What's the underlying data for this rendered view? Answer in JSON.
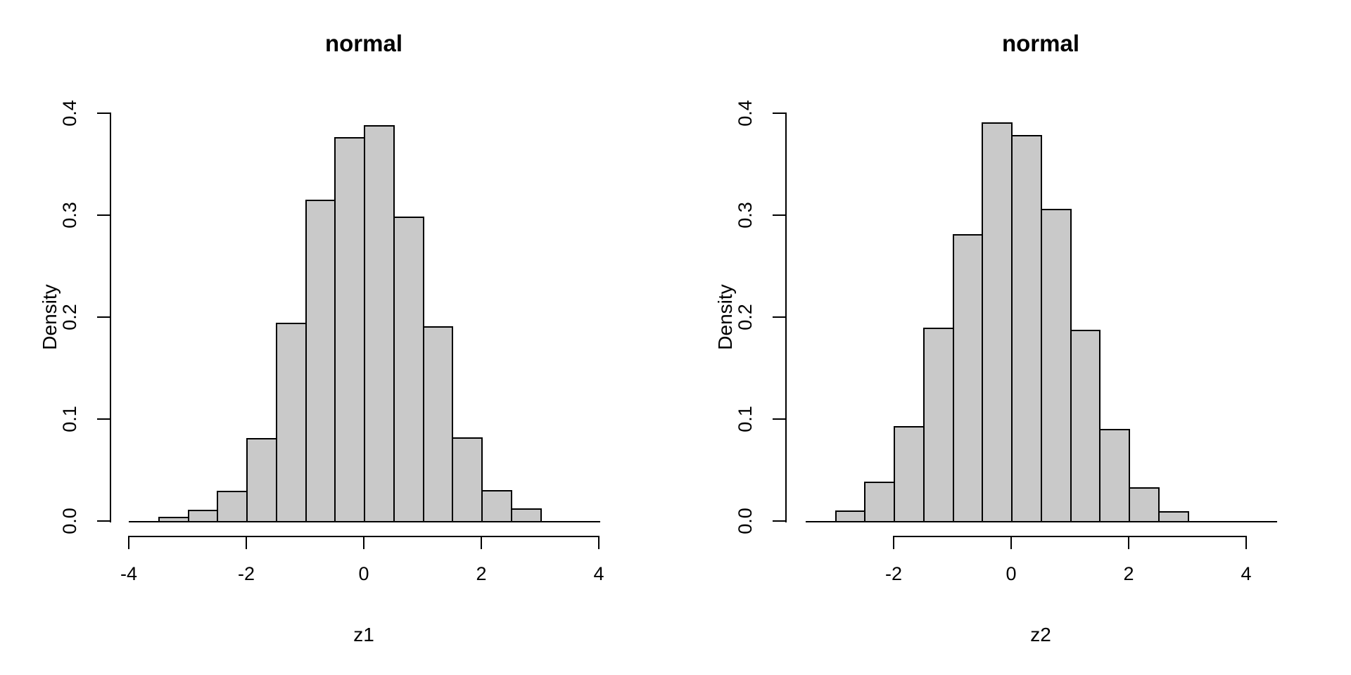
{
  "figure": {
    "background": "#ffffff",
    "bar_fill": "#c9c9c9",
    "bar_border": "#000000",
    "text_color": "#000000"
  },
  "chart_data": [
    {
      "type": "bar",
      "title": "normal",
      "xlabel": "z1",
      "ylabel": "Density",
      "bin_start": -4.0,
      "bin_width": 0.5,
      "densities": [
        0.0005,
        0.003,
        0.01,
        0.028,
        0.08,
        0.193,
        0.314,
        0.375,
        0.387,
        0.297,
        0.19,
        0.081,
        0.029,
        0.011,
        0.002,
        0.0005
      ],
      "x_ticks": [
        -4,
        -2,
        0,
        2,
        4
      ],
      "x_tick_labels": [
        "-4",
        "-2",
        "0",
        "2",
        "4"
      ],
      "y_ticks": [
        0,
        0.1,
        0.2,
        0.3,
        0.4
      ],
      "y_tick_labels": [
        "0.0",
        "0.1",
        "0.2",
        "0.3",
        "0.4"
      ],
      "xlim": [
        -4,
        4
      ],
      "ylim": [
        0,
        0.4
      ],
      "grid": false,
      "legend": null
    },
    {
      "type": "bar",
      "title": "normal",
      "xlabel": "z2",
      "ylabel": "Density",
      "bin_start": -3.5,
      "bin_width": 0.5,
      "densities": [
        0.001,
        0.009,
        0.037,
        0.092,
        0.188,
        0.28,
        0.39,
        0.377,
        0.305,
        0.186,
        0.089,
        0.032,
        0.008,
        0.002,
        0.001,
        0.0
      ],
      "x_ticks": [
        -2,
        0,
        2,
        4
      ],
      "x_tick_labels": [
        "-2",
        "0",
        "2",
        "4"
      ],
      "y_ticks": [
        0,
        0.1,
        0.2,
        0.3,
        0.4
      ],
      "y_tick_labels": [
        "0.0",
        "0.1",
        "0.2",
        "0.3",
        "0.4"
      ],
      "xlim": [
        -3.5,
        4.5
      ],
      "ylim": [
        0,
        0.4
      ],
      "grid": false,
      "legend": null
    }
  ]
}
